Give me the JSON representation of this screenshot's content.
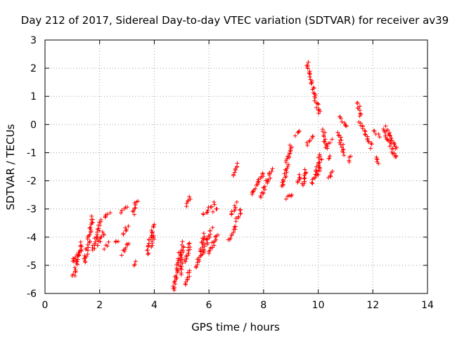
{
  "chart_data": {
    "type": "scatter",
    "title": "Day 212 of 2017, Sidereal Day-to-day VTEC variation (SDTVAR) for receiver av39",
    "xlabel": "GPS time / hours",
    "ylabel": "SDTVAR / TECUs",
    "xlim": [
      0,
      14
    ],
    "ylim": [
      -6,
      3
    ],
    "xticks": [
      0,
      2,
      4,
      6,
      8,
      10,
      12,
      14
    ],
    "yticks": [
      -6,
      -5,
      -4,
      -3,
      -2,
      -1,
      0,
      1,
      2,
      3
    ],
    "grid": true,
    "marker": "+",
    "color": "#ff0000",
    "series": [
      {
        "name": "SDTVAR",
        "segments": [
          {
            "x": [
              1.05,
              1.35
            ],
            "y": [
              -5.4,
              -4.2
            ]
          },
          {
            "x": [
              1.0,
              1.3
            ],
            "y": [
              -4.9,
              -4.5
            ]
          },
          {
            "x": [
              1.45,
              1.75
            ],
            "y": [
              -4.9,
              -3.3
            ]
          },
          {
            "x": [
              1.75,
              2.05
            ],
            "y": [
              -4.5,
              -3.4
            ]
          },
          {
            "x": [
              1.95,
              2.15
            ],
            "y": [
              -4.3,
              -3.8
            ]
          },
          {
            "x": [
              2.2,
              2.35
            ],
            "y": [
              -3.3,
              -3.1
            ]
          },
          {
            "x": [
              2.2,
              2.3
            ],
            "y": [
              -4.4,
              -4.2
            ]
          },
          {
            "x": [
              2.6,
              2.65
            ],
            "y": [
              -4.1,
              -4.2
            ]
          },
          {
            "x": [
              2.75,
              3.0
            ],
            "y": [
              -3.1,
              -2.95
            ]
          },
          {
            "x": [
              2.85,
              3.05
            ],
            "y": [
              -4.6,
              -4.2
            ]
          },
          {
            "x": [
              2.85,
              3.0
            ],
            "y": [
              -3.9,
              -3.6
            ]
          },
          {
            "x": [
              3.25,
              3.35
            ],
            "y": [
              -3.2,
              -2.7
            ]
          },
          {
            "x": [
              3.25,
              3.35
            ],
            "y": [
              -5.0,
              -4.9
            ]
          },
          {
            "x": [
              3.75,
              3.95
            ],
            "y": [
              -4.6,
              -3.5
            ]
          },
          {
            "x": [
              3.9,
              4.0
            ],
            "y": [
              -4.3,
              -3.9
            ]
          },
          {
            "x": [
              4.7,
              4.95
            ],
            "y": [
              -5.9,
              -4.5
            ]
          },
          {
            "x": [
              4.95,
              5.05
            ],
            "y": [
              -5.3,
              -4.2
            ]
          },
          {
            "x": [
              5.1,
              5.3
            ],
            "y": [
              -5.7,
              -5.2
            ]
          },
          {
            "x": [
              5.15,
              5.3
            ],
            "y": [
              -2.9,
              -2.6
            ]
          },
          {
            "x": [
              5.15,
              5.3
            ],
            "y": [
              -4.9,
              -4.2
            ]
          },
          {
            "x": [
              5.55,
              5.85
            ],
            "y": [
              -5.1,
              -3.9
            ]
          },
          {
            "x": [
              5.75,
              6.1
            ],
            "y": [
              -4.6,
              -3.7
            ]
          },
          {
            "x": [
              5.8,
              6.2
            ],
            "y": [
              -3.2,
              -2.8
            ]
          },
          {
            "x": [
              6.0,
              6.3
            ],
            "y": [
              -4.6,
              -3.9
            ]
          },
          {
            "x": [
              6.15,
              6.3
            ],
            "y": [
              -3.1,
              -3.0
            ]
          },
          {
            "x": [
              6.75,
              6.95
            ],
            "y": [
              -4.1,
              -3.6
            ]
          },
          {
            "x": [
              6.8,
              7.0
            ],
            "y": [
              -3.2,
              -2.8
            ]
          },
          {
            "x": [
              6.85,
              7.05
            ],
            "y": [
              -1.8,
              -1.4
            ]
          },
          {
            "x": [
              7.0,
              7.2
            ],
            "y": [
              -3.4,
              -3.0
            ]
          },
          {
            "x": [
              7.55,
              8.0
            ],
            "y": [
              -2.5,
              -1.7
            ]
          },
          {
            "x": [
              7.9,
              8.3
            ],
            "y": [
              -2.6,
              -1.6
            ]
          },
          {
            "x": [
              8.7,
              9.0
            ],
            "y": [
              -2.2,
              -0.7
            ]
          },
          {
            "x": [
              8.8,
              9.05
            ],
            "y": [
              -2.6,
              -2.5
            ]
          },
          {
            "x": [
              9.2,
              9.3
            ],
            "y": [
              -0.4,
              -0.2
            ]
          },
          {
            "x": [
              9.2,
              9.35
            ],
            "y": [
              -2.1,
              -1.8
            ]
          },
          {
            "x": [
              9.45,
              9.55
            ],
            "y": [
              -2.2,
              -1.6
            ]
          },
          {
            "x": [
              9.6,
              9.8
            ],
            "y": [
              2.2,
              1.3
            ]
          },
          {
            "x": [
              9.8,
              10.05
            ],
            "y": [
              1.2,
              0.4
            ]
          },
          {
            "x": [
              9.6,
              9.8
            ],
            "y": [
              -0.7,
              -0.4
            ]
          },
          {
            "x": [
              9.8,
              10.05
            ],
            "y": [
              -2.1,
              -1.2
            ]
          },
          {
            "x": [
              10.0,
              10.1
            ],
            "y": [
              -1.8,
              -1.1
            ]
          },
          {
            "x": [
              10.2,
              10.3
            ],
            "y": [
              -0.2,
              -0.9
            ]
          },
          {
            "x": [
              10.35,
              10.5
            ],
            "y": [
              -0.65,
              -0.55
            ]
          },
          {
            "x": [
              10.35,
              10.45
            ],
            "y": [
              -1.25,
              -1.1
            ]
          },
          {
            "x": [
              10.4,
              10.55
            ],
            "y": [
              -1.9,
              -1.7
            ]
          },
          {
            "x": [
              10.75,
              10.95
            ],
            "y": [
              -0.3,
              -1.1
            ]
          },
          {
            "x": [
              10.8,
              11.0
            ],
            "y": [
              0.3,
              -0.1
            ]
          },
          {
            "x": [
              11.1,
              11.2
            ],
            "y": [
              -1.3,
              -1.1
            ]
          },
          {
            "x": [
              11.45,
              11.55
            ],
            "y": [
              0.8,
              0.3
            ]
          },
          {
            "x": [
              11.5,
              11.95
            ],
            "y": [
              0.1,
              -0.8
            ]
          },
          {
            "x": [
              12.05,
              12.2
            ],
            "y": [
              -0.2,
              -0.4
            ]
          },
          {
            "x": [
              12.1,
              12.2
            ],
            "y": [
              -1.15,
              -1.4
            ]
          },
          {
            "x": [
              12.4,
              12.85
            ],
            "y": [
              -0.2,
              -1.2
            ]
          },
          {
            "x": [
              12.5,
              12.85
            ],
            "y": [
              -0.1,
              -0.9
            ]
          }
        ]
      }
    ]
  }
}
